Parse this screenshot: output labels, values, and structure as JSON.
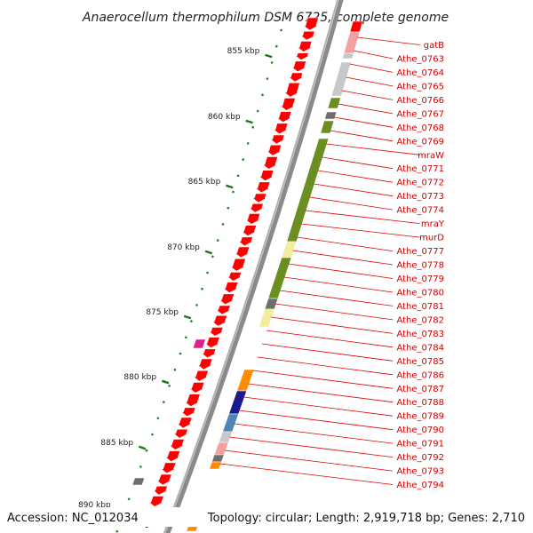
{
  "title": "Anaerocellum thermophilum DSM 6725, complete genome",
  "footer": {
    "accession": "Accession: NC_012034",
    "summary": "Topology: circular; Length: 2,919,718 bp; Genes: 2,710"
  },
  "ticks": [
    "855 kbp",
    "860 kbp",
    "865 kbp",
    "870 kbp",
    "875 kbp",
    "880 kbp",
    "885 kbp",
    "890 kbp"
  ],
  "gene_labels": [
    "gatB",
    "Athe_0763",
    "Athe_0764",
    "Athe_0765",
    "Athe_0766",
    "Athe_0767",
    "Athe_0768",
    "Athe_0769",
    "mraW",
    "Athe_0771",
    "Athe_0772",
    "Athe_0773",
    "Athe_0774",
    "mraY",
    "murD",
    "Athe_0777",
    "Athe_0778",
    "Athe_0779",
    "Athe_0780",
    "Athe_0781",
    "Athe_0782",
    "Athe_0783",
    "Athe_0784",
    "Athe_0785",
    "Athe_0786",
    "Athe_0787",
    "Athe_0788",
    "Athe_0789",
    "Athe_0790",
    "Athe_0791",
    "Athe_0792",
    "Athe_0793",
    "Athe_0794"
  ],
  "colors": {
    "cds": "#ff0000",
    "label": "#d00000",
    "leader": "#e00000",
    "backbone": "#8a8a8a",
    "tick": "#1a7a1a",
    "dots": "#1a8a1a",
    "cog_olive": "#6b8e23",
    "cog_grey": "#c8c8c8",
    "cog_dark": "#6e6e6e",
    "cog_pink": "#f4a0a0",
    "cog_yellow": "#f3ec9c",
    "cog_magenta": "#e0208a",
    "cog_orange": "#ff8c00",
    "cog_navy": "#1a1a8c",
    "cog_blue": "#4f86b8",
    "cog_purple": "#8a6ed0"
  }
}
